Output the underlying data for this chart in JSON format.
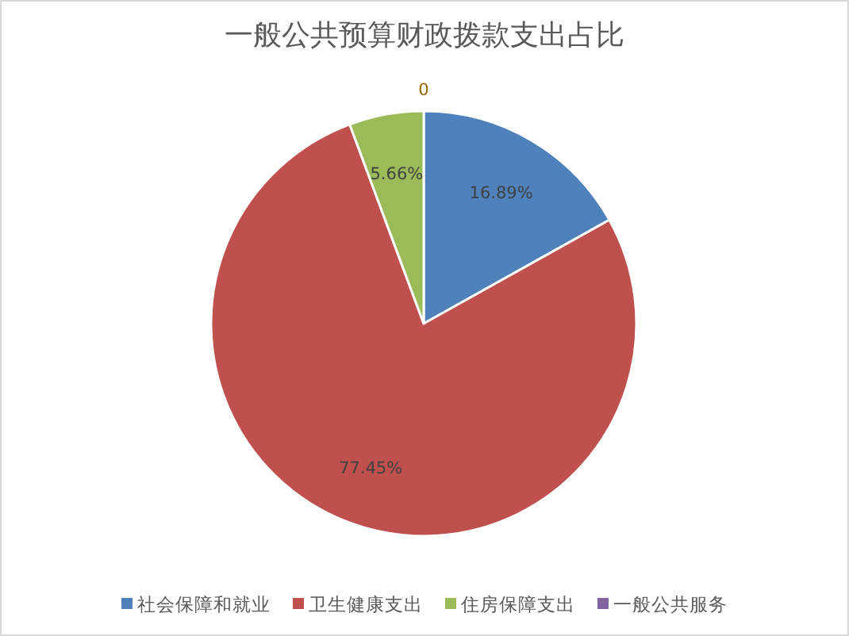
{
  "chart_data": {
    "type": "pie",
    "title": "一般公共预算财政拨款支出占比",
    "categories": [
      "社会保障和就业",
      "卫生健康支出",
      "住房保障支出",
      "一般公共服务"
    ],
    "values": [
      16.89,
      77.45,
      5.66,
      0
    ],
    "colors": [
      "#4f81bd",
      "#c0504d",
      "#9bbb59",
      "#8064a2"
    ],
    "value_labels": [
      "16.89%",
      "77.45%",
      "5.66%",
      "0"
    ],
    "legend": "bottom"
  }
}
